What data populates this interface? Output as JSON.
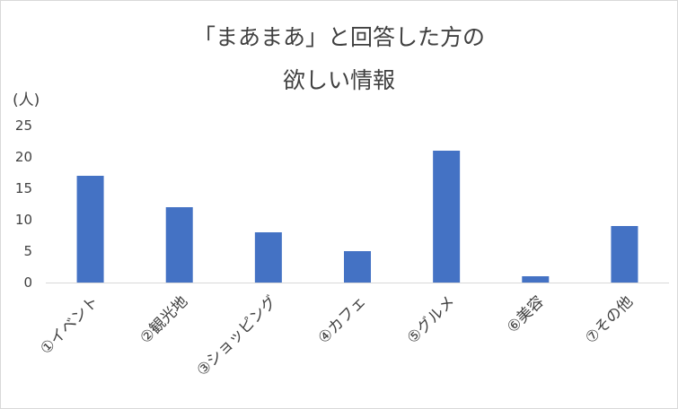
{
  "chart_data": {
    "type": "bar",
    "title_line1": "「まあまあ」と回答した方の",
    "title_line2": "欲しい情報",
    "ylabel": "(人)",
    "xlabel": "",
    "categories": [
      "①イベント",
      "②観光地",
      "③ショッピング",
      "④カフェ",
      "⑤グルメ",
      "⑥美容",
      "⑦その他"
    ],
    "values": [
      17,
      12,
      8,
      5,
      21,
      1,
      9
    ],
    "ylim": [
      0,
      25
    ],
    "yticks": [
      0,
      5,
      10,
      15,
      20,
      25
    ],
    "grid": false,
    "legend": "none",
    "bar_color": "#4472C4"
  }
}
